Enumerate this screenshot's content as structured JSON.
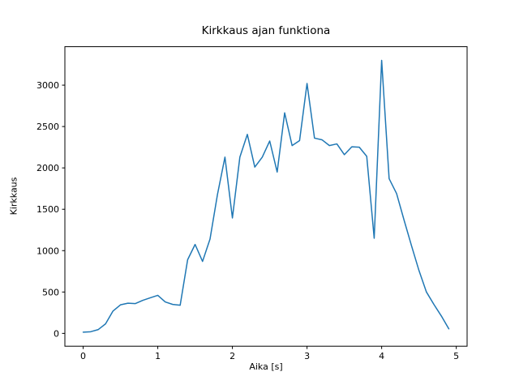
{
  "figure": {
    "background": "#ffffff"
  },
  "chart_data": {
    "type": "line",
    "title": "Kirkkaus ajan funktiona",
    "xlabel": "Aika [s]",
    "ylabel": "Kirkkaus",
    "line_color": "#1f77b4",
    "axis_color": "#000000",
    "grid": false,
    "legend_position": "none",
    "x_ticks": [
      0,
      1,
      2,
      3,
      4,
      5
    ],
    "y_ticks": [
      0,
      500,
      1000,
      1500,
      2000,
      2500,
      3000
    ],
    "xlim": [
      -0.245,
      5.145
    ],
    "ylim": [
      -155,
      3465
    ],
    "x": [
      0.0,
      0.1,
      0.2,
      0.3,
      0.4,
      0.5,
      0.6,
      0.7,
      0.8,
      0.9,
      1.0,
      1.1,
      1.2,
      1.3,
      1.4,
      1.5,
      1.6,
      1.7,
      1.8,
      1.9,
      2.0,
      2.1,
      2.2,
      2.3,
      2.4,
      2.5,
      2.6,
      2.7,
      2.8,
      2.9,
      3.0,
      3.1,
      3.2,
      3.3,
      3.4,
      3.5,
      3.6,
      3.7,
      3.8,
      3.9,
      4.0,
      4.1,
      4.2,
      4.3,
      4.4,
      4.5,
      4.6,
      4.7,
      4.8,
      4.9
    ],
    "values": [
      15,
      20,
      45,
      115,
      270,
      345,
      365,
      360,
      400,
      430,
      460,
      380,
      350,
      340,
      890,
      1075,
      870,
      1140,
      1680,
      2130,
      1395,
      2130,
      2405,
      2010,
      2130,
      2325,
      1950,
      2665,
      2270,
      2330,
      3020,
      2360,
      2340,
      2270,
      2290,
      2160,
      2255,
      2250,
      2140,
      1150,
      3300,
      1870,
      1690,
      1370,
      1060,
      760,
      500,
      350,
      210,
      55
    ]
  }
}
